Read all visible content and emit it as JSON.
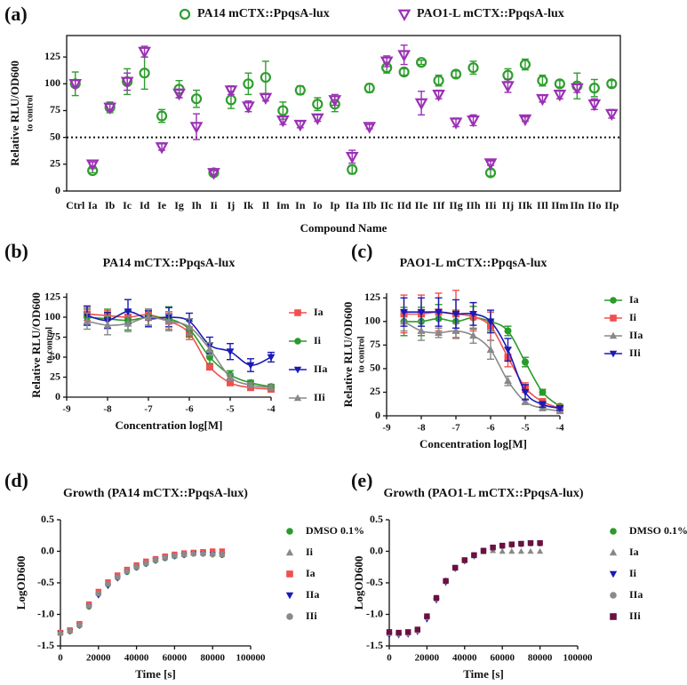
{
  "chart_data": [
    {
      "type": "dot",
      "panel_label": "(a)",
      "x_label": "Compound Name",
      "y_label": "Relative RLU/OD600",
      "y_label_note": "to control",
      "categories": [
        "Ctrl",
        "Ia",
        "Ib",
        "Ic",
        "Id",
        "Ie",
        "Ig",
        "Ih",
        "Ii",
        "Ij",
        "Ik",
        "Il",
        "Im",
        "In",
        "Io",
        "Ip",
        "IIa",
        "IIb",
        "IIc",
        "IId",
        "IIe",
        "IIf",
        "IIg",
        "IIh",
        "IIi",
        "IIj",
        "IIk",
        "IIl",
        "IIm",
        "IIn",
        "IIo",
        "IIp"
      ],
      "ylim": [
        0,
        145
      ],
      "yticks": [
        0,
        25,
        50,
        75,
        100,
        125
      ],
      "reference_line": 50,
      "legend": "top",
      "frame": true,
      "series": [
        {
          "name": "PA14 mCTX::PpqsA-lux",
          "color": "#2e9e2e",
          "marker": "circle-open",
          "values": [
            100,
            19,
            78,
            102,
            110,
            70,
            95,
            86,
            17,
            85,
            100,
            106,
            75,
            94,
            81,
            81,
            20,
            96,
            115,
            111,
            120,
            103,
            109,
            115,
            17,
            108,
            118,
            103,
            100,
            98,
            96,
            100
          ],
          "errors": [
            11,
            2,
            5,
            12,
            15,
            6,
            8,
            8,
            2,
            8,
            10,
            15,
            8,
            4,
            6,
            7,
            4,
            4,
            5,
            3,
            2,
            5,
            3,
            6,
            3,
            6,
            5,
            5,
            3,
            12,
            8,
            3
          ]
        },
        {
          "name": "PAO1-L mCTX::PpqsA-lux",
          "color": "#9b30b5",
          "marker": "triangle-down-open",
          "values": [
            100,
            25,
            78,
            102,
            130,
            41,
            91,
            60,
            17,
            94,
            79,
            87,
            66,
            62,
            68,
            85,
            32,
            60,
            121,
            127,
            82,
            90,
            64,
            66,
            26,
            98,
            67,
            86,
            90,
            96,
            81,
            72
          ],
          "errors": [
            3,
            2,
            3,
            8,
            5,
            3,
            4,
            12,
            2,
            4,
            5,
            3,
            4,
            3,
            3,
            5,
            6,
            2,
            5,
            9,
            11,
            4,
            4,
            5,
            2,
            6,
            2,
            3,
            4,
            4,
            5,
            4
          ]
        }
      ]
    },
    {
      "type": "line",
      "panel_label": "(b)",
      "title": "PA14 mCTX::PpqsA-lux",
      "x_label": "Concentration log[M]",
      "y_label": "Relative RLU/OD600",
      "y_label_note": "to control",
      "x": [
        -8.5,
        -8,
        -7.5,
        -7,
        -6.5,
        -6,
        -5.5,
        -5,
        -4.5,
        -4
      ],
      "xlim": [
        -9,
        -4
      ],
      "xticks": [
        -9,
        -8,
        -7,
        -6,
        -5,
        -4
      ],
      "ylim": [
        0,
        130
      ],
      "yticks": [
        0,
        25,
        50,
        75,
        100,
        125
      ],
      "legend": "right",
      "series": [
        {
          "name": "Ia",
          "color": "#f0504f",
          "marker": "square",
          "values": [
            104,
            102,
            100,
            103,
            95,
            80,
            38,
            18,
            12,
            10
          ],
          "errors": [
            8,
            6,
            8,
            7,
            10,
            8,
            4,
            2,
            3,
            2
          ]
        },
        {
          "name": "Ii",
          "color": "#2a9a2a",
          "marker": "circle",
          "values": [
            100,
            98,
            96,
            100,
            98,
            85,
            50,
            28,
            18,
            13
          ],
          "errors": [
            10,
            12,
            12,
            10,
            15,
            10,
            8,
            5,
            3,
            3
          ]
        },
        {
          "name": "IIa",
          "color": "#1a1ab8",
          "marker": "triangle-down",
          "values": [
            102,
            96,
            107,
            98,
            100,
            95,
            65,
            57,
            40,
            50
          ],
          "errors": [
            12,
            10,
            15,
            10,
            12,
            10,
            10,
            10,
            8,
            6
          ]
        },
        {
          "name": "IIi",
          "color": "#888888",
          "marker": "triangle-up",
          "values": [
            95,
            90,
            92,
            100,
            95,
            88,
            60,
            25,
            15,
            12
          ],
          "errors": [
            10,
            12,
            10,
            10,
            12,
            10,
            8,
            4,
            3,
            3
          ]
        }
      ]
    },
    {
      "type": "line",
      "panel_label": "(c)",
      "title": "PAO1-L mCTX::PpqsA-lux",
      "x_label": "Concentration log[M]",
      "y_label": "Relative RLU/OD600",
      "y_label_note": "to control",
      "x": [
        -8.5,
        -8,
        -7.5,
        -7,
        -6.5,
        -6,
        -5.5,
        -5,
        -4.5,
        -4
      ],
      "xlim": [
        -9,
        -4
      ],
      "xticks": [
        -9,
        -8,
        -7,
        -6,
        -5,
        -4
      ],
      "ylim": [
        0,
        130
      ],
      "yticks": [
        0,
        25,
        50,
        75,
        100,
        125
      ],
      "legend": "right",
      "series": [
        {
          "name": "Ia",
          "color": "#2a9a2a",
          "marker": "circle",
          "values": [
            100,
            100,
            103,
            100,
            104,
            100,
            90,
            57,
            25,
            10
          ],
          "errors": [
            15,
            15,
            15,
            12,
            12,
            10,
            5,
            5,
            3,
            2
          ]
        },
        {
          "name": "Ii",
          "color": "#f0504f",
          "marker": "square",
          "values": [
            108,
            108,
            110,
            108,
            105,
            95,
            62,
            30,
            15,
            8
          ],
          "errors": [
            20,
            20,
            20,
            25,
            15,
            15,
            10,
            5,
            3,
            2
          ]
        },
        {
          "name": "IIa",
          "color": "#888888",
          "marker": "triangle-up",
          "values": [
            100,
            90,
            88,
            90,
            85,
            70,
            37,
            15,
            8,
            5
          ],
          "errors": [
            10,
            10,
            5,
            8,
            8,
            10,
            5,
            3,
            2,
            2
          ]
        },
        {
          "name": "IIi",
          "color": "#1a1ab8",
          "marker": "triangle-down",
          "values": [
            110,
            110,
            110,
            108,
            108,
            100,
            70,
            25,
            12,
            8
          ],
          "errors": [
            15,
            15,
            15,
            15,
            12,
            12,
            12,
            8,
            3,
            2
          ]
        }
      ]
    },
    {
      "type": "scatter",
      "panel_label": "(d)",
      "title": "Growth (PA14 mCTX::PpqsA-lux)",
      "x_label": "Time [s]",
      "y_label": "LogOD600",
      "x": [
        0,
        5000,
        10000,
        15000,
        20000,
        25000,
        30000,
        35000,
        40000,
        45000,
        50000,
        55000,
        60000,
        65000,
        70000,
        75000,
        80000,
        85000
      ],
      "xlim": [
        0,
        100000
      ],
      "xticks": [
        0,
        20000,
        40000,
        60000,
        80000,
        100000
      ],
      "ylim": [
        -1.5,
        0.5
      ],
      "yticks": [
        {
          "value": -1.5,
          "label": "-1.5"
        },
        {
          "value": -1,
          "label": "-1.0"
        },
        {
          "value": -0.5,
          "label": "-0.5"
        },
        {
          "value": 0,
          "label": "0.0"
        },
        {
          "value": 0.5,
          "label": "0.5"
        }
      ],
      "legend": "right",
      "series": [
        {
          "name": "DMSO 0.1%",
          "color": "#2a9a2a",
          "marker": "circle",
          "values": [
            -1.3,
            -1.27,
            -1.18,
            -0.88,
            -0.68,
            -0.53,
            -0.42,
            -0.33,
            -0.26,
            -0.2,
            -0.15,
            -0.11,
            -0.08,
            -0.06,
            -0.04,
            -0.04,
            -0.05,
            -0.06
          ]
        },
        {
          "name": "Ii",
          "color": "#888888",
          "marker": "triangle-up",
          "values": [
            -1.29,
            -1.26,
            -1.16,
            -0.85,
            -0.66,
            -0.51,
            -0.4,
            -0.31,
            -0.24,
            -0.18,
            -0.13,
            -0.1,
            -0.07,
            -0.05,
            -0.03,
            -0.03,
            -0.04,
            -0.05
          ]
        },
        {
          "name": "Ia",
          "color": "#f0504f",
          "marker": "square",
          "values": [
            -1.29,
            -1.25,
            -1.15,
            -0.84,
            -0.64,
            -0.49,
            -0.38,
            -0.29,
            -0.22,
            -0.16,
            -0.12,
            -0.08,
            -0.05,
            -0.03,
            -0.02,
            -0.01,
            0.0,
            0.0
          ]
        },
        {
          "name": "IIa",
          "color": "#1a1ab8",
          "marker": "triangle-down",
          "values": [
            -1.3,
            -1.27,
            -1.18,
            -0.88,
            -0.7,
            -0.55,
            -0.43,
            -0.33,
            -0.26,
            -0.2,
            -0.15,
            -0.11,
            -0.08,
            -0.06,
            -0.04,
            -0.04,
            -0.05,
            -0.06
          ]
        },
        {
          "name": "IIi",
          "color": "#8a8a8a",
          "marker": "circle",
          "values": [
            -1.3,
            -1.26,
            -1.17,
            -0.87,
            -0.67,
            -0.52,
            -0.41,
            -0.32,
            -0.25,
            -0.19,
            -0.14,
            -0.1,
            -0.07,
            -0.05,
            -0.04,
            -0.04,
            -0.05,
            -0.05
          ]
        }
      ]
    },
    {
      "type": "scatter",
      "panel_label": "(e)",
      "title": "Growth (PAO1-L mCTX::PpqsA-lux)",
      "x_label": "Time [s]",
      "y_label": "LogOD600",
      "x": [
        0,
        5000,
        10000,
        15000,
        20000,
        25000,
        30000,
        35000,
        40000,
        45000,
        50000,
        55000,
        60000,
        65000,
        70000,
        75000,
        80000
      ],
      "xlim": [
        0,
        100000
      ],
      "xticks": [
        0,
        20000,
        40000,
        60000,
        80000,
        100000
      ],
      "ylim": [
        -1.5,
        0.5
      ],
      "yticks": [
        {
          "value": -1.5,
          "label": "-1.5"
        },
        {
          "value": -1,
          "label": "-1.0"
        },
        {
          "value": -0.5,
          "label": "-0.5"
        },
        {
          "value": 0,
          "label": "0.0"
        },
        {
          "value": 0.5,
          "label": "0.5"
        }
      ],
      "legend": "right",
      "series": [
        {
          "name": "DMSO 0.1%",
          "color": "#2a9a2a",
          "marker": "circle",
          "values": [
            -1.3,
            -1.3,
            -1.29,
            -1.26,
            -1.05,
            -0.75,
            -0.48,
            -0.27,
            -0.15,
            -0.07,
            0.0,
            0.05,
            0.08,
            0.1,
            0.12,
            0.13,
            0.13
          ]
        },
        {
          "name": "Ia",
          "color": "#888888",
          "marker": "triangle-up",
          "values": [
            -1.3,
            -1.3,
            -1.29,
            -1.25,
            -1.03,
            -0.73,
            -0.46,
            -0.26,
            -0.14,
            -0.07,
            -0.01,
            0.01,
            0.0,
            0.0,
            0.0,
            0.0,
            0.0
          ]
        },
        {
          "name": "Ii",
          "color": "#1a1ab8",
          "marker": "triangle-down",
          "values": [
            -1.33,
            -1.33,
            -1.32,
            -1.28,
            -1.08,
            -0.78,
            -0.5,
            -0.28,
            -0.16,
            -0.08,
            0.0,
            0.05,
            0.08,
            0.1,
            0.12,
            0.13,
            0.13
          ]
        },
        {
          "name": "IIa",
          "color": "#8a8a8a",
          "marker": "circle",
          "values": [
            -1.3,
            -1.31,
            -1.3,
            -1.26,
            -1.05,
            -0.76,
            -0.48,
            -0.27,
            -0.15,
            -0.07,
            0.0,
            0.05,
            0.08,
            0.1,
            0.11,
            0.12,
            0.12
          ]
        },
        {
          "name": "IIi",
          "color": "#6b1040",
          "marker": "square",
          "values": [
            -1.28,
            -1.29,
            -1.28,
            -1.24,
            -1.03,
            -0.74,
            -0.47,
            -0.26,
            -0.14,
            -0.06,
            0.01,
            0.06,
            0.09,
            0.11,
            0.12,
            0.13,
            0.13
          ]
        }
      ]
    }
  ]
}
